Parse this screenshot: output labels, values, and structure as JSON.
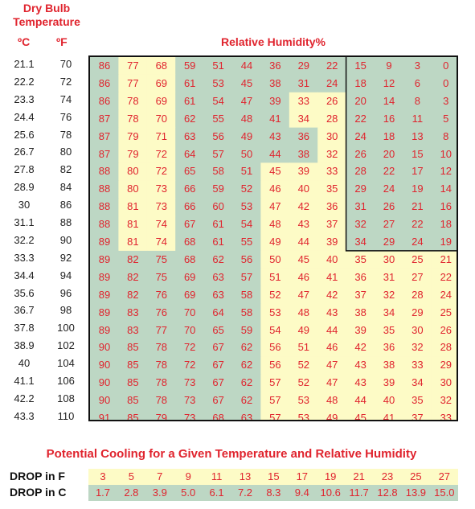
{
  "header": {
    "dry_bulb_line1": "Dry Bulb",
    "dry_bulb_line2": "Temperature",
    "col_c": "ºC",
    "col_f": "ºF",
    "relative_humidity": "Relative Humidity%"
  },
  "colors": {
    "accent_red": "#e0242e",
    "green": "#bdd7c4",
    "yellow": "#fdfbc6"
  },
  "temps_c": [
    "21.1",
    "22.2",
    "23.3",
    "24.4",
    "25.6",
    "26.7",
    "27.8",
    "28.9",
    "30",
    "31.1",
    "32.2",
    "33.3",
    "34.4",
    "35.6",
    "36.7",
    "37.8",
    "38.9",
    "40",
    "41.1",
    "42.2",
    "43.3"
  ],
  "temps_f": [
    "70",
    "72",
    "74",
    "76",
    "78",
    "80",
    "82",
    "84",
    "86",
    "88",
    "90",
    "92",
    "94",
    "96",
    "98",
    "100",
    "102",
    "104",
    "106",
    "108",
    "110"
  ],
  "rh": [
    [
      "86",
      "77",
      "68",
      "59",
      "51",
      "44",
      "36",
      "29",
      "22",
      "15",
      "9",
      "3",
      "0"
    ],
    [
      "86",
      "77",
      "69",
      "61",
      "53",
      "45",
      "38",
      "31",
      "24",
      "18",
      "12",
      "6",
      "0"
    ],
    [
      "86",
      "78",
      "69",
      "61",
      "54",
      "47",
      "39",
      "33",
      "26",
      "20",
      "14",
      "8",
      "3"
    ],
    [
      "87",
      "78",
      "70",
      "62",
      "55",
      "48",
      "41",
      "34",
      "28",
      "22",
      "16",
      "11",
      "5"
    ],
    [
      "87",
      "79",
      "71",
      "63",
      "56",
      "49",
      "43",
      "36",
      "30",
      "24",
      "18",
      "13",
      "8"
    ],
    [
      "87",
      "79",
      "72",
      "64",
      "57",
      "50",
      "44",
      "38",
      "32",
      "26",
      "20",
      "15",
      "10"
    ],
    [
      "88",
      "80",
      "72",
      "65",
      "58",
      "51",
      "45",
      "39",
      "33",
      "28",
      "22",
      "17",
      "12"
    ],
    [
      "88",
      "80",
      "73",
      "66",
      "59",
      "52",
      "46",
      "40",
      "35",
      "29",
      "24",
      "19",
      "14"
    ],
    [
      "88",
      "81",
      "73",
      "66",
      "60",
      "53",
      "47",
      "42",
      "36",
      "31",
      "26",
      "21",
      "16"
    ],
    [
      "88",
      "81",
      "74",
      "67",
      "61",
      "54",
      "48",
      "43",
      "37",
      "32",
      "27",
      "22",
      "18"
    ],
    [
      "89",
      "81",
      "74",
      "68",
      "61",
      "55",
      "49",
      "44",
      "39",
      "34",
      "29",
      "24",
      "19"
    ],
    [
      "89",
      "82",
      "75",
      "68",
      "62",
      "56",
      "50",
      "45",
      "40",
      "35",
      "30",
      "25",
      "21"
    ],
    [
      "89",
      "82",
      "75",
      "69",
      "63",
      "57",
      "51",
      "46",
      "41",
      "36",
      "31",
      "27",
      "22"
    ],
    [
      "89",
      "82",
      "76",
      "69",
      "63",
      "58",
      "52",
      "47",
      "42",
      "37",
      "32",
      "28",
      "24"
    ],
    [
      "89",
      "83",
      "76",
      "70",
      "64",
      "58",
      "53",
      "48",
      "43",
      "38",
      "34",
      "29",
      "25"
    ],
    [
      "89",
      "83",
      "77",
      "70",
      "65",
      "59",
      "54",
      "49",
      "44",
      "39",
      "35",
      "30",
      "26"
    ],
    [
      "90",
      "85",
      "78",
      "72",
      "67",
      "62",
      "56",
      "51",
      "46",
      "42",
      "36",
      "32",
      "28"
    ],
    [
      "90",
      "85",
      "78",
      "72",
      "67",
      "62",
      "56",
      "52",
      "47",
      "43",
      "38",
      "33",
      "29"
    ],
    [
      "90",
      "85",
      "78",
      "73",
      "67",
      "62",
      "57",
      "52",
      "47",
      "43",
      "39",
      "34",
      "30"
    ],
    [
      "90",
      "85",
      "78",
      "73",
      "67",
      "62",
      "57",
      "53",
      "48",
      "44",
      "40",
      "35",
      "32"
    ],
    [
      "91",
      "85",
      "79",
      "73",
      "68",
      "63",
      "57",
      "53",
      "49",
      "45",
      "41",
      "37",
      "33"
    ]
  ],
  "cooling": {
    "title": "Potential Cooling for a Given Temperature and Relative Humidity",
    "drop_f_label": "DROP in F",
    "drop_c_label": "DROP in C",
    "drop_f": [
      "3",
      "5",
      "7",
      "9",
      "11",
      "13",
      "15",
      "17",
      "19",
      "21",
      "23",
      "25",
      "27"
    ],
    "drop_c": [
      "1.7",
      "2.8",
      "3.9",
      "5.0",
      "6.1",
      "7.2",
      "8.3",
      "9.4",
      "10.6",
      "11.7",
      "12.8",
      "13.9",
      "15.0"
    ]
  }
}
